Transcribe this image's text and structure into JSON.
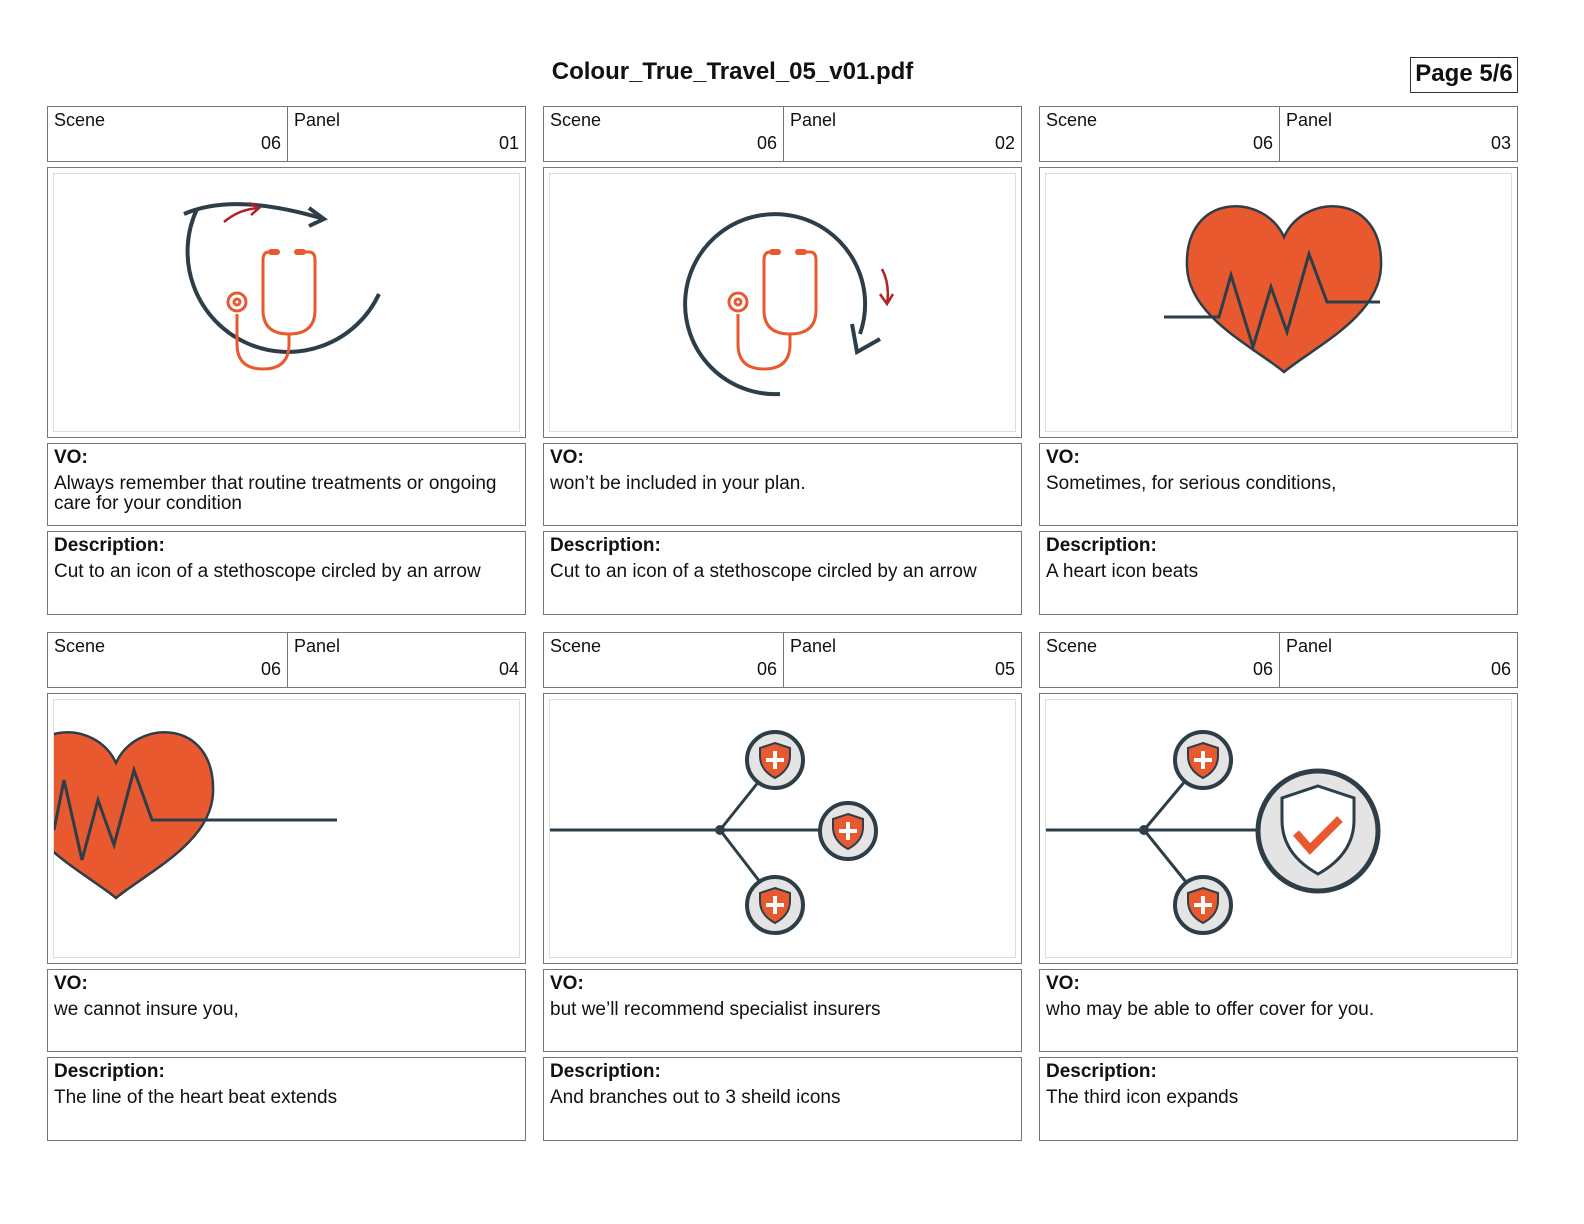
{
  "header": {
    "title": "Colour_True_Travel_05_v01.pdf",
    "page": "Page 5/6"
  },
  "labels": {
    "scene": "Scene",
    "panel": "Panel",
    "vo": "VO:",
    "description": "Description:"
  },
  "panels": [
    {
      "scene": "06",
      "panel": "01",
      "vo": "Always remember that routine treatments or ongoing care for your condition",
      "description": "Cut to an icon of a stethoscope circled by an arrow"
    },
    {
      "scene": "06",
      "panel": "02",
      "vo": "won’t be included in your plan.",
      "description": "Cut to an icon of a stethoscope circled by an arrow"
    },
    {
      "scene": "06",
      "panel": "03",
      "vo": "Sometimes, for serious conditions,",
      "description": "A heart icon beats"
    },
    {
      "scene": "06",
      "panel": "04",
      "vo": "we cannot insure you,",
      "description": "The line of the heart beat extends"
    },
    {
      "scene": "06",
      "panel": "05",
      "vo": "but we’ll recommend specialist insurers",
      "description": "And branches out to 3 sheild icons"
    },
    {
      "scene": "06",
      "panel": "06",
      "vo": "who may be able to offer cover for you.",
      "description": "The third icon expands"
    }
  ]
}
